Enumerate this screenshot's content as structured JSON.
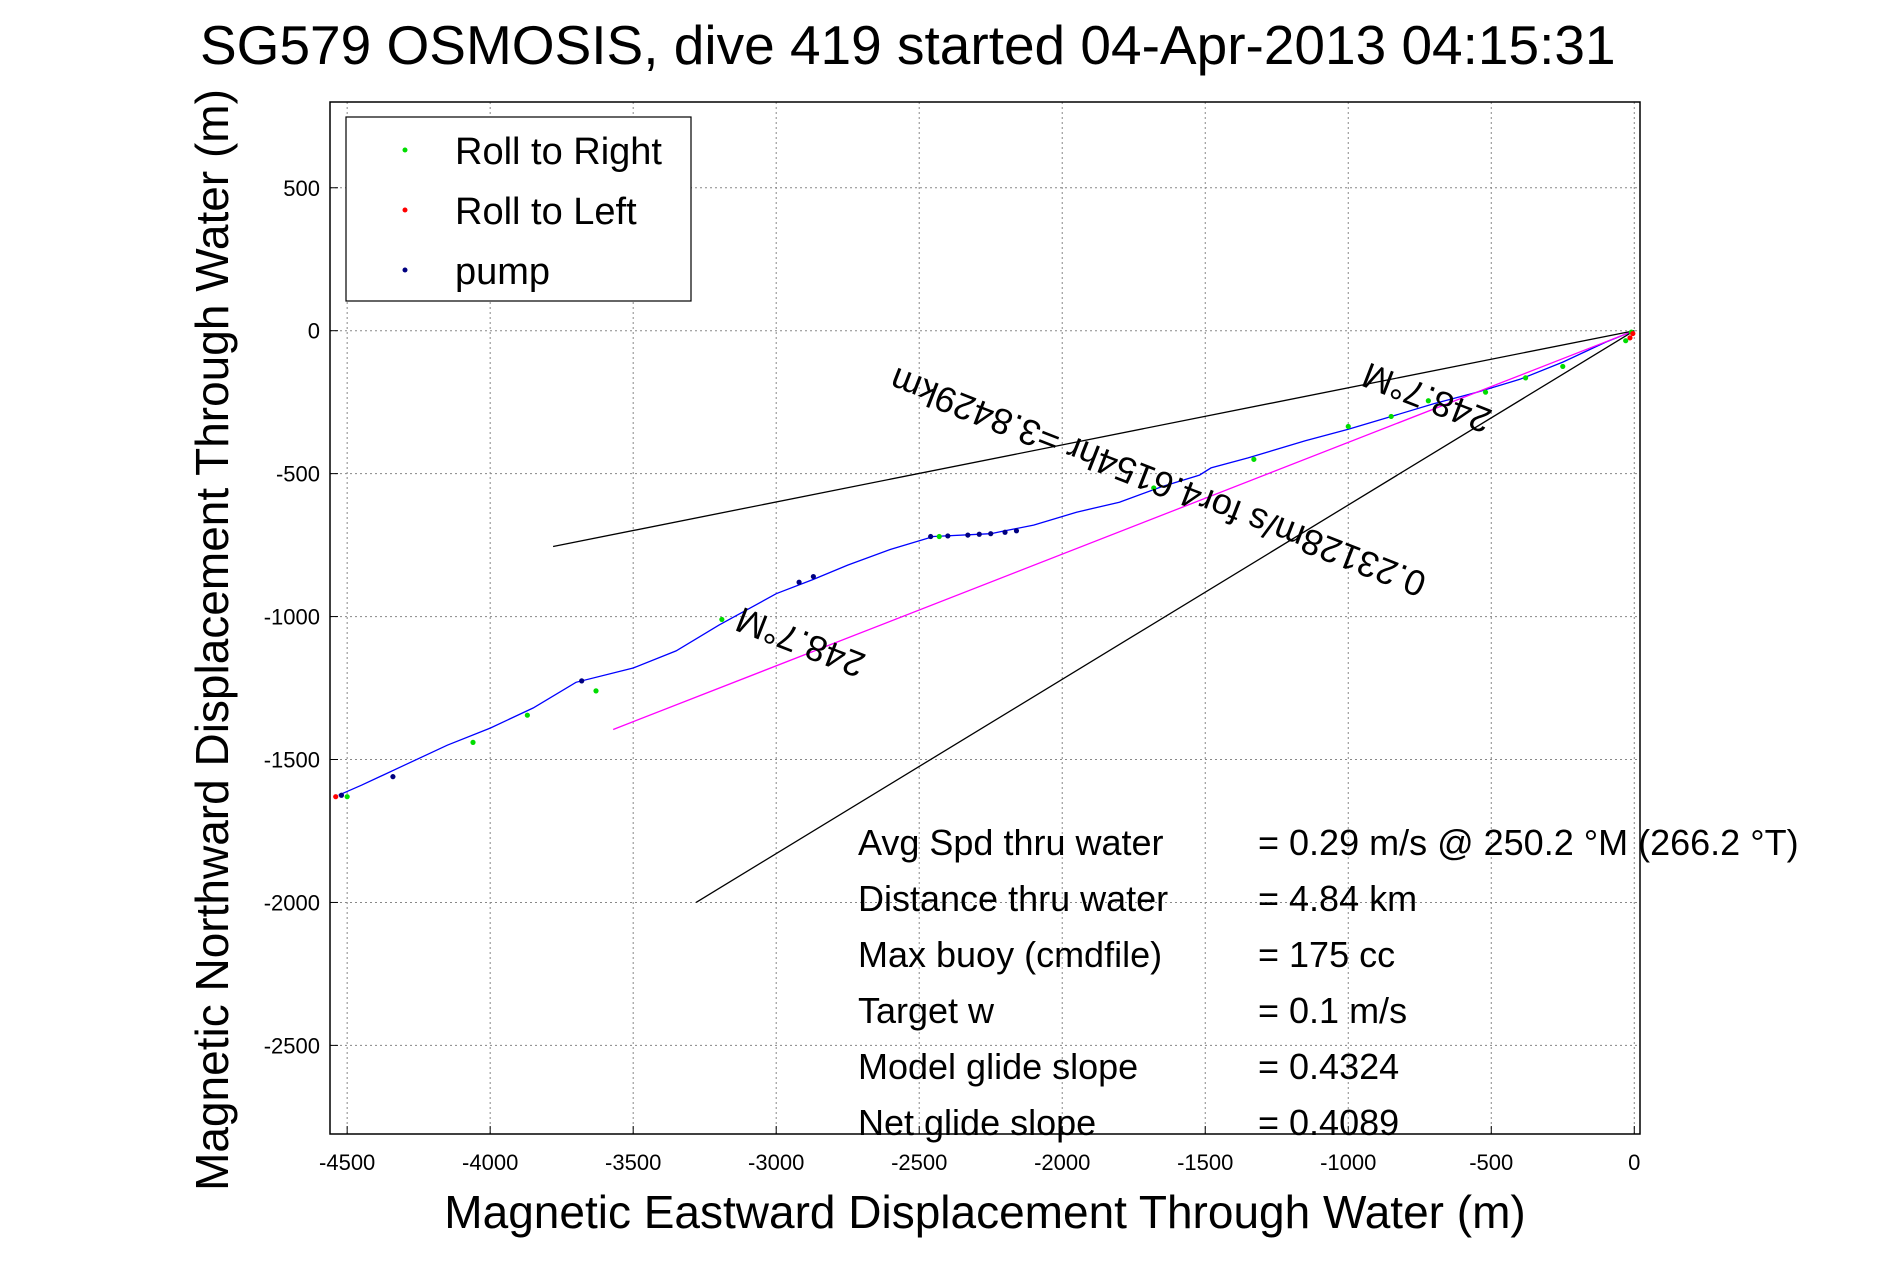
{
  "chart_data": {
    "type": "line",
    "title": "SG579 OSMOSIS, dive 419 started 04-Apr-2013 04:15:31",
    "xlabel": "Magnetic Eastward Displacement Through Water (m)",
    "ylabel": "Magnetic Northward Displacement Through Water (m)",
    "xlim": [
      -4560,
      20
    ],
    "ylim": [
      -2810,
      800
    ],
    "xticks": [
      -4500,
      -4000,
      -3500,
      -3000,
      -2500,
      -2000,
      -1500,
      -1000,
      -500,
      0
    ],
    "yticks": [
      500,
      0,
      -500,
      -1000,
      -1500,
      -2000,
      -2500
    ],
    "xtick_labels": [
      "-4500",
      "-4000",
      "-3500",
      "-3000",
      "-2500",
      "-2000",
      "-1500",
      "-1000",
      "-500",
      "0"
    ],
    "ytick_labels": [
      "500",
      "0",
      "-500",
      "-1000",
      "-1500",
      "-2000",
      "-2500"
    ],
    "grid": true,
    "legend_position": "top-left",
    "legend": [
      {
        "label": "Roll to Right",
        "color": "#00dd00"
      },
      {
        "label": "Roll to Left",
        "color": "#ff0000"
      },
      {
        "label": "pump",
        "color": "#000080"
      }
    ],
    "series": [
      {
        "name": "track",
        "color": "#0000ff",
        "x": [
          0,
          -100,
          -250,
          -400,
          -550,
          -700,
          -850,
          -1000,
          -1150,
          -1350,
          -1480,
          -1520,
          -1650,
          -1800,
          -1950,
          -2100,
          -2200,
          -2250,
          -2450,
          -2600,
          -2750,
          -2870,
          -3000,
          -3100,
          -3200,
          -3350,
          -3500,
          -3700,
          -3850,
          -4000,
          -4150,
          -4300,
          -4450,
          -4530
        ],
        "y": [
          0,
          -40,
          -110,
          -170,
          -215,
          -255,
          -300,
          -345,
          -385,
          -445,
          -480,
          -505,
          -545,
          -600,
          -635,
          -680,
          -700,
          -710,
          -720,
          -765,
          -820,
          -870,
          -920,
          -975,
          -1030,
          -1120,
          -1180,
          -1230,
          -1320,
          -1390,
          -1450,
          -1520,
          -1590,
          -1625
        ]
      },
      {
        "name": "mean heading",
        "color": "#ff00ff",
        "x": [
          0,
          -3570
        ],
        "y": [
          0,
          -1395
        ]
      },
      {
        "name": "heading bound 1",
        "color": "#000000",
        "x": [
          0,
          -3780
        ],
        "y": [
          0,
          -755
        ]
      },
      {
        "name": "heading bound 2",
        "color": "#000000",
        "x": [
          0,
          -3280
        ],
        "y": [
          0,
          -2000
        ]
      }
    ],
    "markers": [
      {
        "series": "Roll to Right",
        "color": "#00dd00",
        "x": [
          -30,
          -250,
          -380,
          -520,
          -720,
          -850,
          -1000,
          -1330,
          -1680,
          -2430,
          -3190,
          -3630,
          -3870,
          -4060,
          -4500,
          -10
        ],
        "y": [
          -35,
          -125,
          -165,
          -215,
          -245,
          -300,
          -335,
          -450,
          -550,
          -720,
          -1010,
          -1260,
          -1345,
          -1440,
          -1630,
          -5
        ]
      },
      {
        "series": "Roll to Left",
        "color": "#ff0000",
        "x": [
          -5,
          -15,
          -4540
        ],
        "y": [
          -10,
          -25,
          -1630
        ]
      },
      {
        "series": "pump",
        "color": "#000080",
        "x": [
          -2160,
          -2200,
          -2250,
          -2290,
          -2330,
          -2400,
          -2460,
          -2870,
          -2920,
          -3680,
          -4340,
          -4520
        ],
        "y": [
          -700,
          -705,
          -710,
          -712,
          -715,
          -718,
          -720,
          -860,
          -880,
          -1225,
          -1560,
          -1625
        ]
      }
    ],
    "annotations": [
      {
        "text": "248.7°M",
        "x": -2900,
        "y": -1050,
        "rotation": 201.3
      },
      {
        "text": "248.7°M",
        "x": -710,
        "y": -195,
        "rotation": 201.3
      },
      {
        "text": "0.23128m/s for4.6154hr =3.8429km",
        "x": -1650,
        "y": -490,
        "rotation": 201.3
      }
    ],
    "stats": [
      {
        "label": "Avg Spd thru water",
        "value": "=  0.29 m/s @ 250.2 °M (266.2 °T)"
      },
      {
        "label": "Distance thru water",
        "value": "=  4.84 km"
      },
      {
        "label": "Max buoy (cmdfile)",
        "value": "= 175 cc"
      },
      {
        "label": "Target w",
        "value": "= 0.1 m/s"
      },
      {
        "label": "Model glide slope",
        "value": "= 0.4324"
      },
      {
        "label": "Net glide slope",
        "value": "= 0.4089"
      }
    ]
  }
}
